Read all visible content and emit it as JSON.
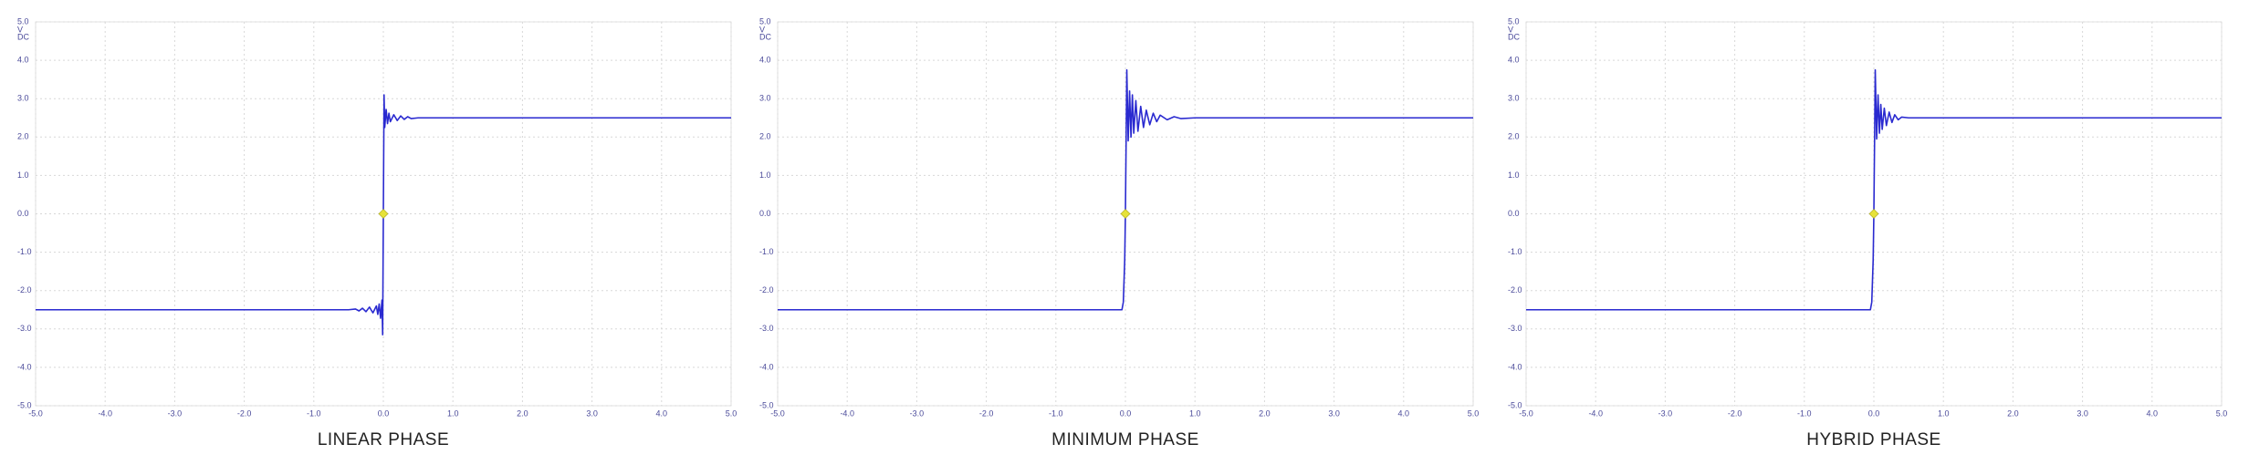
{
  "chart_data": [
    {
      "type": "line",
      "title": "LINEAR PHASE",
      "y_unit": "V",
      "y_coupling": "DC",
      "xlim": [
        -5,
        5
      ],
      "ylim": [
        -5,
        5
      ],
      "grid": true,
      "xticks": [
        {
          "value": -5,
          "label": "-5.0"
        },
        {
          "value": -4,
          "label": "-4.0"
        },
        {
          "value": -3,
          "label": "-3.0"
        },
        {
          "value": -2,
          "label": "-2.0"
        },
        {
          "value": -1,
          "label": "-1.0"
        },
        {
          "value": 0,
          "label": "0.0"
        },
        {
          "value": 1,
          "label": "1.0"
        },
        {
          "value": 2,
          "label": "2.0"
        },
        {
          "value": 3,
          "label": "3.0"
        },
        {
          "value": 4,
          "label": "4.0"
        },
        {
          "value": 5,
          "label": "5.0"
        }
      ],
      "yticks": [
        {
          "value": 5,
          "label": "5.0"
        },
        {
          "value": 4,
          "label": "4.0"
        },
        {
          "value": 3,
          "label": "3.0"
        },
        {
          "value": 2,
          "label": "2.0"
        },
        {
          "value": 1,
          "label": "1.0"
        },
        {
          "value": 0,
          "label": "0.0"
        },
        {
          "value": -1,
          "label": "-1.0"
        },
        {
          "value": -2,
          "label": "-2.0"
        },
        {
          "value": -3,
          "label": "-3.0"
        },
        {
          "value": -4,
          "label": "-4.0"
        },
        {
          "value": -5,
          "label": "-5.0"
        }
      ],
      "series": [
        {
          "color": "#2a2ad0",
          "x": [
            -5,
            -0.5,
            -0.4,
            -0.35,
            -0.3,
            -0.25,
            -0.2,
            -0.15,
            -0.1,
            -0.08,
            -0.06,
            -0.04,
            -0.02,
            -0.01,
            0,
            0.01,
            0.02,
            0.04,
            0.06,
            0.08,
            0.1,
            0.15,
            0.2,
            0.25,
            0.3,
            0.35,
            0.4,
            0.5,
            5
          ],
          "values": [
            -2.5,
            -2.5,
            -2.48,
            -2.53,
            -2.46,
            -2.55,
            -2.43,
            -2.58,
            -2.4,
            -2.62,
            -2.35,
            -2.72,
            -2.25,
            -3.15,
            0,
            3.1,
            2.25,
            2.72,
            2.35,
            2.62,
            2.4,
            2.58,
            2.43,
            2.55,
            2.46,
            2.53,
            2.48,
            2.5,
            2.5
          ]
        }
      ],
      "marker": {
        "x": 0,
        "y": 0,
        "color": "#e6e23a"
      }
    },
    {
      "type": "line",
      "title": "MINIMUM  PHASE",
      "y_unit": "V",
      "y_coupling": "DC",
      "xlim": [
        -5,
        5
      ],
      "ylim": [
        -5,
        5
      ],
      "grid": true,
      "xticks": [
        {
          "value": -5,
          "label": "-5.0"
        },
        {
          "value": -4,
          "label": "-4.0"
        },
        {
          "value": -3,
          "label": "-3.0"
        },
        {
          "value": -2,
          "label": "-2.0"
        },
        {
          "value": -1,
          "label": "-1.0"
        },
        {
          "value": 0,
          "label": "0.0"
        },
        {
          "value": 1,
          "label": "1.0"
        },
        {
          "value": 2,
          "label": "2.0"
        },
        {
          "value": 3,
          "label": "3.0"
        },
        {
          "value": 4,
          "label": "4.0"
        },
        {
          "value": 5,
          "label": "5.0"
        }
      ],
      "yticks": [
        {
          "value": 5,
          "label": "5.0"
        },
        {
          "value": 4,
          "label": "4.0"
        },
        {
          "value": 3,
          "label": "3.0"
        },
        {
          "value": 2,
          "label": "2.0"
        },
        {
          "value": 1,
          "label": "1.0"
        },
        {
          "value": 0,
          "label": "0.0"
        },
        {
          "value": -1,
          "label": "-1.0"
        },
        {
          "value": -2,
          "label": "-2.0"
        },
        {
          "value": -3,
          "label": "-3.0"
        },
        {
          "value": -4,
          "label": "-4.0"
        },
        {
          "value": -5,
          "label": "-5.0"
        }
      ],
      "series": [
        {
          "color": "#2a2ad0",
          "x": [
            -5,
            -0.05,
            -0.03,
            -0.01,
            0,
            0.02,
            0.04,
            0.06,
            0.08,
            0.1,
            0.12,
            0.15,
            0.18,
            0.22,
            0.26,
            0.3,
            0.35,
            0.4,
            0.45,
            0.5,
            0.6,
            0.7,
            0.8,
            1.0,
            5
          ],
          "values": [
            -2.5,
            -2.5,
            -2.3,
            -1.2,
            0,
            3.75,
            1.9,
            3.2,
            2.0,
            3.1,
            2.1,
            2.95,
            2.15,
            2.8,
            2.25,
            2.7,
            2.32,
            2.62,
            2.4,
            2.57,
            2.45,
            2.53,
            2.48,
            2.5,
            2.5
          ]
        }
      ],
      "marker": {
        "x": 0,
        "y": 0,
        "color": "#e6e23a"
      }
    },
    {
      "type": "line",
      "title": "HYBRID  PHASE",
      "y_unit": "V",
      "y_coupling": "DC",
      "xlim": [
        -5,
        5
      ],
      "ylim": [
        -5,
        5
      ],
      "grid": true,
      "xticks": [
        {
          "value": -5,
          "label": "-5.0"
        },
        {
          "value": -4,
          "label": "-4.0"
        },
        {
          "value": -3,
          "label": "-3.0"
        },
        {
          "value": -2,
          "label": "-2.0"
        },
        {
          "value": -1,
          "label": "-1.0"
        },
        {
          "value": 0,
          "label": "0.0"
        },
        {
          "value": 1,
          "label": "1.0"
        },
        {
          "value": 2,
          "label": "2.0"
        },
        {
          "value": 3,
          "label": "3.0"
        },
        {
          "value": 4,
          "label": "4.0"
        },
        {
          "value": 5,
          "label": "5.0"
        }
      ],
      "yticks": [
        {
          "value": 5,
          "label": "5.0"
        },
        {
          "value": 4,
          "label": "4.0"
        },
        {
          "value": 3,
          "label": "3.0"
        },
        {
          "value": 2,
          "label": "2.0"
        },
        {
          "value": 1,
          "label": "1.0"
        },
        {
          "value": 0,
          "label": "0.0"
        },
        {
          "value": -1,
          "label": "-1.0"
        },
        {
          "value": -2,
          "label": "-2.0"
        },
        {
          "value": -3,
          "label": "-3.0"
        },
        {
          "value": -4,
          "label": "-4.0"
        },
        {
          "value": -5,
          "label": "-5.0"
        }
      ],
      "series": [
        {
          "color": "#2a2ad0",
          "x": [
            -5,
            -0.05,
            -0.03,
            -0.01,
            0,
            0.02,
            0.04,
            0.06,
            0.08,
            0.1,
            0.12,
            0.15,
            0.18,
            0.22,
            0.26,
            0.3,
            0.35,
            0.4,
            0.5,
            5
          ],
          "values": [
            -2.5,
            -2.5,
            -2.3,
            -1.2,
            0,
            3.75,
            1.95,
            3.1,
            2.1,
            2.85,
            2.2,
            2.75,
            2.3,
            2.65,
            2.38,
            2.58,
            2.45,
            2.52,
            2.5,
            2.5
          ]
        }
      ],
      "marker": {
        "x": 0,
        "y": 0,
        "color": "#e6e23a"
      }
    }
  ]
}
